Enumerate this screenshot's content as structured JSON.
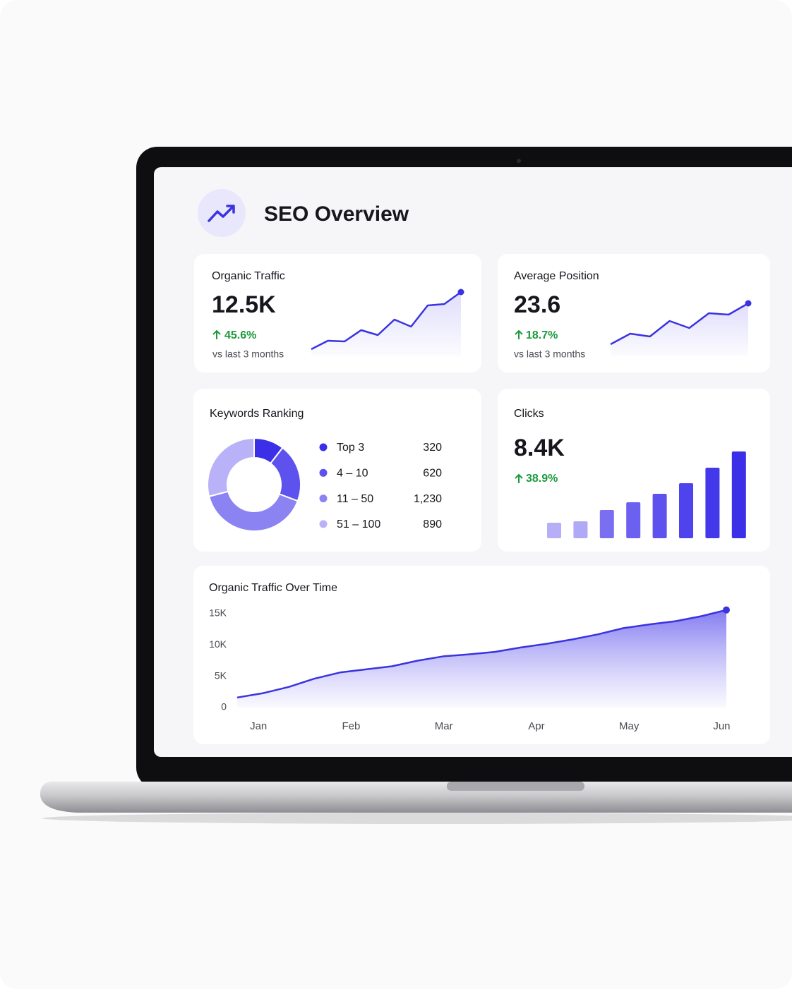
{
  "header": {
    "title": "SEO Overview"
  },
  "chart_data": [
    {
      "type": "sparkline",
      "title": "Organic Traffic",
      "value_label": "12.5K",
      "change": "45.6%",
      "note": "vs last 3 months",
      "values": [
        10,
        22,
        21,
        37,
        30,
        52,
        42,
        72,
        74,
        91
      ],
      "color": "#3a33e0"
    },
    {
      "type": "sparkline",
      "title": "Average Position",
      "value_label": "23.6",
      "change": "18.7%",
      "note": "vs last 3 months",
      "values": [
        17,
        32,
        28,
        50,
        40,
        61,
        59,
        75
      ],
      "color": "#3a33e0"
    },
    {
      "type": "pie",
      "title": "Keywords Ranking",
      "categories": [
        "Top 3",
        "4 – 10",
        "11 – 50",
        "51 – 100"
      ],
      "values": [
        320,
        620,
        1230,
        890
      ],
      "value_labels": [
        "320",
        "620",
        "1,230",
        "890"
      ],
      "colors": [
        "#3b30e8",
        "#5d52ee",
        "#8c83f3",
        "#b9b2f8"
      ]
    },
    {
      "type": "bar",
      "title": "Clicks",
      "value_label": "8.4K",
      "change": "38.9%",
      "values": [
        22,
        24,
        40,
        51,
        63,
        78,
        100,
        123
      ],
      "colors": [
        "#b6aff7",
        "#b0a9f6",
        "#7a6ff1",
        "#6b60ef",
        "#5d52ee",
        "#4e43ec",
        "#4338ea",
        "#3b30e8"
      ]
    },
    {
      "type": "area",
      "title": "Organic Traffic Over Time",
      "color": "#3a33e0",
      "x": [
        -0.23,
        0.05,
        0.33,
        0.6,
        0.88,
        1.16,
        1.44,
        1.72,
        2.0,
        2.27,
        2.55,
        2.83,
        3.11,
        3.39,
        3.66,
        3.94,
        4.22,
        4.5,
        4.78,
        5.05
      ],
      "values": [
        1600,
        2300,
        3300,
        4600,
        5600,
        6100,
        6600,
        7500,
        8200,
        8500,
        8900,
        9600,
        10200,
        10900,
        11700,
        12700,
        13300,
        13800,
        14600,
        15600
      ],
      "xlim": [
        -0.23,
        5.05
      ],
      "xticks": [
        {
          "value": 0,
          "label": "Jan"
        },
        {
          "value": 1,
          "label": "Feb"
        },
        {
          "value": 2,
          "label": "Mar"
        },
        {
          "value": 3,
          "label": "Apr"
        },
        {
          "value": 4,
          "label": "May"
        },
        {
          "value": 5,
          "label": "Jun"
        }
      ],
      "ylim": [
        0,
        15000
      ],
      "yticks": [
        0,
        {
          "value": 5000,
          "label": "5K"
        },
        {
          "value": 10000,
          "label": "10K"
        },
        {
          "value": 15000,
          "label": "15K"
        }
      ]
    }
  ]
}
